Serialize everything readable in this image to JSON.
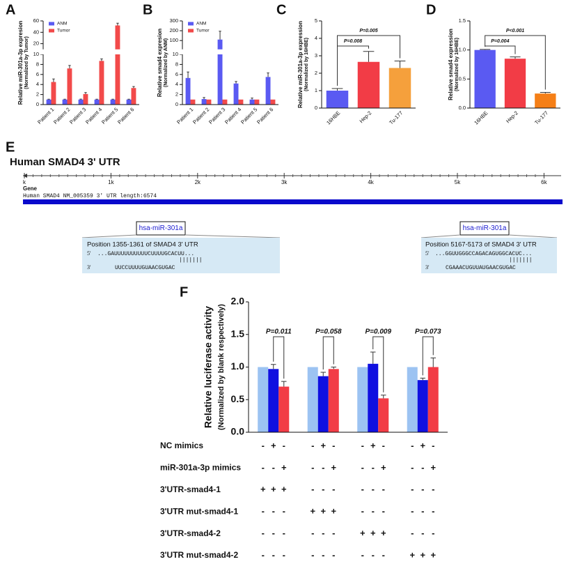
{
  "chart_data": [
    {
      "type": "bar",
      "panel_label": "A",
      "ylabel": [
        "Relative miR-301a-3p expresion",
        "(Normalized by Tumor)"
      ],
      "categories": [
        "Patient 1",
        "Patient 2",
        "Patient 3",
        "Patient 4",
        "Patient 5",
        "Patient 6"
      ],
      "series": [
        {
          "name": "ANM",
          "color": "#5a5af2",
          "values": [
            1,
            1,
            1,
            1,
            1,
            1
          ],
          "errors": [
            0.08,
            0.08,
            0.1,
            0.08,
            0.08,
            0.08
          ]
        },
        {
          "name": "Tumor",
          "color": "#f24a4a",
          "values": [
            4.5,
            7.2,
            2.1,
            8.7,
            52,
            3.3
          ],
          "errors": [
            0.6,
            0.6,
            0.3,
            0.4,
            4,
            0.3
          ]
        }
      ],
      "ylim": [
        0,
        60
      ],
      "axis_break": [
        10,
        10
      ],
      "yticks": [
        0,
        2,
        4,
        6,
        8,
        10,
        20,
        40,
        60
      ],
      "legend": "upper-left"
    },
    {
      "type": "bar",
      "panel_label": "B",
      "ylabel": [
        "Relative smad4 expresion",
        "(Normalized by ANM)"
      ],
      "categories": [
        "Patient 1",
        "Patient 2",
        "Patient 3",
        "Patient 4",
        "Patient 5",
        "Patient 6"
      ],
      "series": [
        {
          "name": "ANM",
          "color": "#5a5af2",
          "values": [
            5.3,
            1.1,
            110,
            4.2,
            1.0,
            5.5
          ],
          "errors": [
            1.2,
            0.3,
            85,
            0.4,
            0.3,
            0.8
          ]
        },
        {
          "name": "Tumor",
          "color": "#f24a4a",
          "values": [
            1,
            1,
            1,
            1,
            1,
            1
          ],
          "errors": [
            0,
            0,
            0,
            0,
            0,
            0
          ]
        }
      ],
      "ylim": [
        0,
        300
      ],
      "axis_break": [
        10,
        10
      ],
      "yticks": [
        0,
        2,
        4,
        6,
        8,
        10,
        100,
        200,
        300
      ],
      "legend": "upper-left"
    },
    {
      "type": "bar",
      "panel_label": "C",
      "ylabel": [
        "Relative miR-301a-3p expression",
        "(Normalized by 16HBE)"
      ],
      "categories": [
        "16HBE",
        "Hep-2",
        "Tu-177"
      ],
      "series": [
        {
          "colors": [
            "#5a5af2",
            "#f23c46",
            "#f5a03c"
          ],
          "values": [
            1.0,
            2.65,
            2.3
          ],
          "errors": [
            0.12,
            0.6,
            0.4
          ]
        }
      ],
      "ylim": [
        0,
        5
      ],
      "yticks": [
        0,
        1,
        2,
        3,
        4,
        5
      ],
      "annotations": [
        "P=0.008",
        "P=0.005"
      ]
    },
    {
      "type": "bar",
      "panel_label": "D",
      "ylabel": [
        "Relative smad4 expression",
        "(Normalized by 16HBE)"
      ],
      "categories": [
        "16HBE",
        "Hep-2",
        "Tu-177"
      ],
      "series": [
        {
          "colors": [
            "#5a5af2",
            "#f23c46",
            "#f57f17"
          ],
          "values": [
            1.0,
            0.85,
            0.25
          ],
          "errors": [
            0.01,
            0.03,
            0.02
          ]
        }
      ],
      "ylim": [
        0,
        1.5
      ],
      "yticks": [
        {
          "value": 0,
          "label": "0.0"
        },
        {
          "value": 0.5,
          "label": "0.5"
        },
        {
          "value": 1.0,
          "label": "1.0"
        },
        {
          "value": 1.5,
          "label": "1.5"
        }
      ],
      "annotations": [
        "P=0.004",
        "P<0.001"
      ]
    },
    {
      "type": "bar",
      "panel_label": "F",
      "ylabel": [
        "Relative luciferase activity",
        "(Normalized by blank respectively)"
      ],
      "series": [
        {
          "color": "#9cc3f2",
          "values": [
            1,
            1,
            1,
            1
          ],
          "errors": [
            0,
            0,
            0,
            0
          ]
        },
        {
          "color": "#1010e0",
          "values": [
            0.97,
            0.86,
            1.05,
            0.8
          ],
          "errors": [
            0.07,
            0.06,
            0.18,
            0.03
          ]
        },
        {
          "color": "#f23c46",
          "values": [
            0.7,
            0.97,
            0.52,
            1.0
          ],
          "errors": [
            0.08,
            0.03,
            0.05,
            0.14
          ]
        }
      ],
      "ylim": [
        0,
        2
      ],
      "yticks": [
        {
          "value": 0,
          "label": "0.0"
        },
        {
          "value": 0.5,
          "label": "0.5"
        },
        {
          "value": 1.0,
          "label": "1.0"
        },
        {
          "value": 1.5,
          "label": "1.5"
        },
        {
          "value": 2,
          "label": "2.0"
        }
      ],
      "annotations": [
        "P=0.011",
        "P=0.058",
        "P=0.009",
        "P=0.073"
      ],
      "conditions": [
        {
          "label": "NC mimics",
          "signs": [
            "-",
            "+",
            "-",
            "-",
            "+",
            "-",
            "-",
            "+",
            "-",
            "-",
            "+",
            "-"
          ]
        },
        {
          "label": "miR-301a-3p mimics",
          "signs": [
            "-",
            "-",
            "+",
            "-",
            "-",
            "+",
            "-",
            "-",
            "+",
            "-",
            "-",
            "+"
          ]
        },
        {
          "label": "3'UTR-smad4-1",
          "signs": [
            "+",
            "+",
            "+",
            "-",
            "-",
            "-",
            "-",
            "-",
            "-",
            "-",
            "-",
            "-"
          ]
        },
        {
          "label": "3'UTR mut-smad4-1",
          "signs": [
            "-",
            "-",
            "-",
            "+",
            "+",
            "+",
            "-",
            "-",
            "-",
            "-",
            "-",
            "-"
          ]
        },
        {
          "label": "3'UTR-smad4-2",
          "signs": [
            "-",
            "-",
            "-",
            "-",
            "-",
            "-",
            "+",
            "+",
            "+",
            "-",
            "-",
            "-"
          ]
        },
        {
          "label": "3'UTR mut-smad4-2",
          "signs": [
            "-",
            "-",
            "-",
            "-",
            "-",
            "-",
            "-",
            "-",
            "-",
            "+",
            "+",
            "+"
          ]
        }
      ]
    }
  ],
  "diagram": {
    "panel_label": "E",
    "title": "Human SMAD4  3' UTR",
    "ruler": [
      "k",
      "1k",
      "2k",
      "3k",
      "4k",
      "5k",
      "6k"
    ],
    "gene_label": "Gene",
    "gene_desc": "Human SMAD4 NM_005359 3' UTR length:6574",
    "sites": [
      {
        "mirna": "hsa-miR-301a",
        "position": "Position 1355-1361 of SMAD4 3' UTR",
        "utr_prefix": "5'",
        "utr_seq": "...GAUUUUUUUUUUCUUUUGCACUU...",
        "pairing": "|||||||",
        "mir_prefix": "3'",
        "mir_seq": "UUCCUUUUGUAACGUGAC"
      },
      {
        "mirna": "hsa-miR-301a",
        "position": "Position 5167-5173 of SMAD4 3' UTR",
        "utr_prefix": "5'",
        "utr_seq": "...GGUUGGGCCAGACAGUGGCACUC...",
        "pairing": "|||||||",
        "mir_prefix": "3'",
        "mir_seq": "CGAAACUGUUAUGAACGUGAC"
      }
    ]
  }
}
